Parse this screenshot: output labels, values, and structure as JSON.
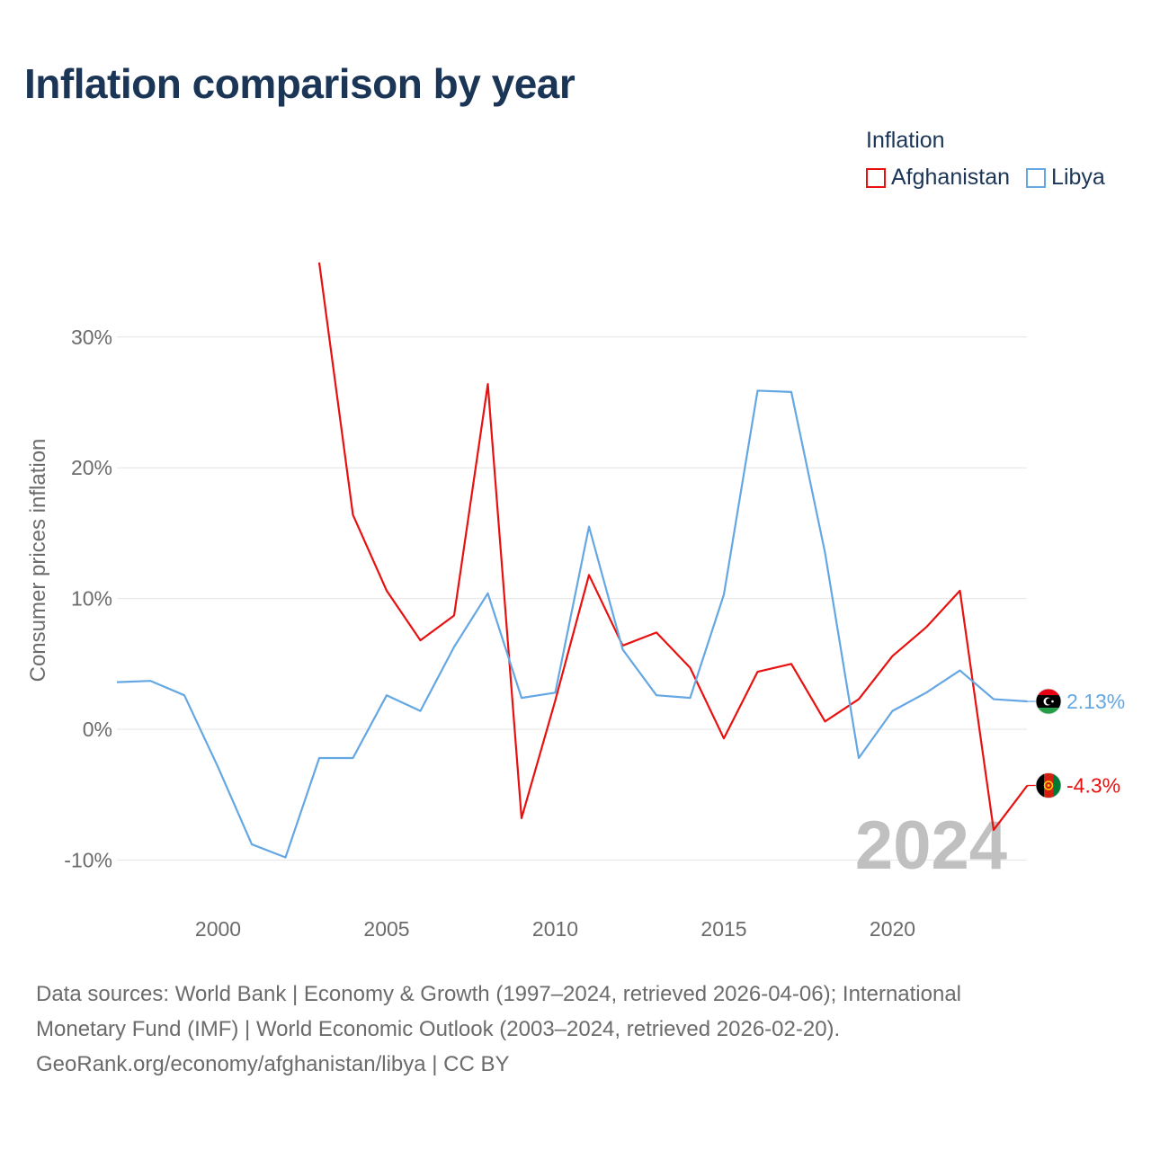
{
  "title": "Inflation comparison by year",
  "legend": {
    "title": "Inflation",
    "items": [
      {
        "label": "Afghanistan",
        "color": "#e8110f"
      },
      {
        "label": "Libya",
        "color": "#64a7e3"
      }
    ]
  },
  "watermark_year": "2024",
  "footer": {
    "line1": "Data sources: World Bank | Economy & Growth (1997–2024, retrieved 2026-04-06); International",
    "line2": "Monetary Fund (IMF) | World Economic Outlook (2003–2024, retrieved 2026-02-20).",
    "line3": "GeoRank.org/economy/afghanistan/libya | CC BY"
  },
  "chart_data": {
    "type": "line",
    "title": "Inflation comparison by year",
    "xlabel": "",
    "ylabel": "Consumer prices inflation",
    "xlim": [
      1997,
      2024.7
    ],
    "ylim": [
      -12,
      30
    ],
    "x_ticks": [
      2000,
      2005,
      2010,
      2015,
      2020
    ],
    "y_ticks": [
      {
        "value": 30,
        "label": "30%"
      },
      {
        "value": 20,
        "label": "20%"
      },
      {
        "value": 10,
        "label": "10%"
      },
      {
        "value": 0,
        "label": "0%"
      },
      {
        "value": -10,
        "label": "-10%"
      }
    ],
    "grid": true,
    "series": [
      {
        "name": "Afghanistan",
        "color": "#e8110f",
        "end_label": "-4.3%",
        "flag": "afghanistan-flag",
        "x": [
          2003,
          2004,
          2005,
          2006,
          2007,
          2008,
          2009,
          2010,
          2011,
          2012,
          2013,
          2014,
          2015,
          2016,
          2017,
          2018,
          2019,
          2020,
          2021,
          2022,
          2023,
          2024
        ],
        "values": [
          35.7,
          16.4,
          10.6,
          6.8,
          8.7,
          26.4,
          -6.8,
          2.2,
          11.8,
          6.4,
          7.4,
          4.7,
          -0.7,
          4.4,
          5.0,
          0.6,
          2.3,
          5.6,
          7.8,
          10.6,
          -7.7,
          -4.3
        ]
      },
      {
        "name": "Libya",
        "color": "#64a7e3",
        "end_label": "2.13%",
        "flag": "libya-flag",
        "x": [
          1997,
          1998,
          1999,
          2000,
          2001,
          2002,
          2003,
          2004,
          2005,
          2006,
          2007,
          2008,
          2009,
          2010,
          2011,
          2012,
          2013,
          2014,
          2015,
          2016,
          2017,
          2018,
          2019,
          2020,
          2021,
          2022,
          2023,
          2024
        ],
        "values": [
          3.6,
          3.7,
          2.6,
          -2.9,
          -8.8,
          -9.8,
          -2.2,
          -2.2,
          2.6,
          1.4,
          6.3,
          10.4,
          2.4,
          2.8,
          15.5,
          6.1,
          2.6,
          2.4,
          10.3,
          25.9,
          25.8,
          13.5,
          -2.2,
          1.4,
          2.8,
          4.5,
          2.3,
          2.13
        ]
      }
    ]
  }
}
